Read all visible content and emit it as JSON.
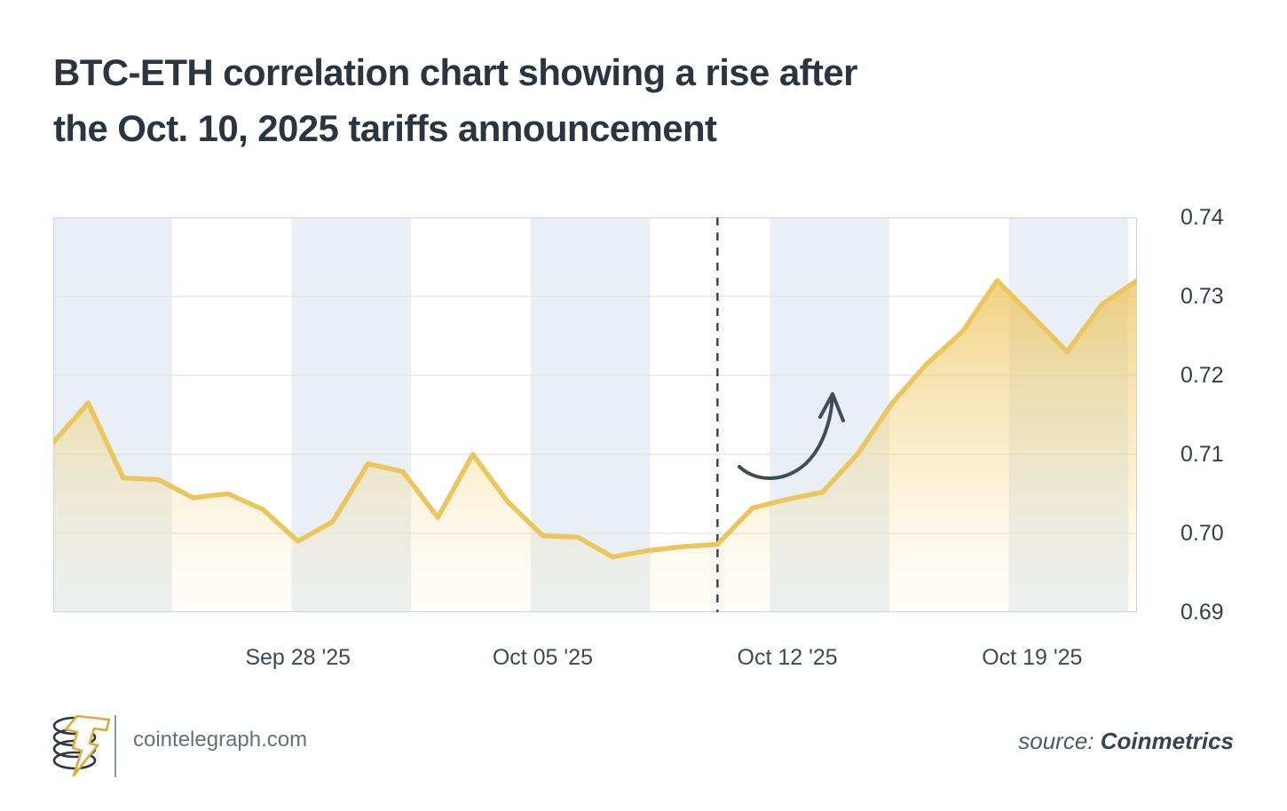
{
  "title": {
    "line1": "BTC-ETH correlation chart showing a rise after",
    "line2": "the Oct. 10, 2025 tariffs announcement"
  },
  "footer": {
    "logo": "cointelegraph-coins-and-lightning-bolt",
    "site": "cointelegraph.com",
    "source_label": "source: ",
    "source_name": "Coinmetrics"
  },
  "chart_data": {
    "type": "area",
    "title": "BTC-ETH correlation",
    "x": [
      "Sep 21 '25",
      "Sep 22 '25",
      "Sep 23 '25",
      "Sep 24 '25",
      "Sep 25 '25",
      "Sep 26 '25",
      "Sep 27 '25",
      "Sep 28 '25",
      "Sep 29 '25",
      "Sep 30 '25",
      "Oct 01 '25",
      "Oct 02 '25",
      "Oct 03 '25",
      "Oct 04 '25",
      "Oct 05 '25",
      "Oct 06 '25",
      "Oct 07 '25",
      "Oct 08 '25",
      "Oct 09 '25",
      "Oct 10 '25",
      "Oct 11 '25",
      "Oct 12 '25",
      "Oct 13 '25",
      "Oct 14 '25",
      "Oct 15 '25",
      "Oct 16 '25",
      "Oct 17 '25",
      "Oct 18 '25",
      "Oct 19 '25",
      "Oct 20 '25",
      "Oct 21 '25",
      "Oct 22 '25"
    ],
    "series": [
      {
        "name": "BTC-ETH correlation",
        "values": [
          0.7115,
          0.7165,
          0.707,
          0.7068,
          0.7045,
          0.705,
          0.703,
          0.699,
          0.7015,
          0.7088,
          0.7078,
          0.702,
          0.71,
          0.704,
          0.6997,
          0.6995,
          0.697,
          0.6978,
          0.6983,
          0.6986,
          0.7032,
          0.7043,
          0.7052,
          0.71,
          0.7165,
          0.7215,
          0.7255,
          0.732,
          0.7275,
          0.723,
          0.729,
          0.732
        ]
      }
    ],
    "xlabel": "",
    "ylabel": "",
    "ylim": [
      0.69,
      0.74
    ],
    "yticks": [
      "0.74",
      "0.73",
      "0.72",
      "0.71",
      "0.70",
      "0.69"
    ],
    "xticks": [
      {
        "label": "Sep 28 '25",
        "index": 7
      },
      {
        "label": "Oct 05 '25",
        "index": 14
      },
      {
        "label": "Oct 12 '25",
        "index": 21
      },
      {
        "label": "Oct 19 '25",
        "index": 28
      }
    ],
    "grid": "horizontal",
    "legend": "none",
    "background_bands": "alternating half-week shading, first band shaded",
    "annotations": {
      "event_line": {
        "label": "Oct. 10, 2025 tariffs announcement",
        "index": 19,
        "style": "dashed-vertical"
      },
      "arrow": {
        "type": "curved-arrow-up",
        "meaning": "rise after announcement"
      }
    },
    "style": {
      "band_color": "#E9EFF4",
      "grid_color": "#E2E7EA",
      "border_color": "#C5D3DC",
      "line_color": "#EBC65E",
      "fill_top": "rgba(236,192,80,0.72)",
      "fill_mid": "rgba(243,214,134,0.42)",
      "fill_bottom": "rgba(250,242,214,0.15)",
      "dashed_line_color": "#3E464D",
      "arrow_color": "#3D4E5A",
      "ytick_color": "#333E49",
      "xtick_color": "#3E4954",
      "title_color": "#2A3540"
    }
  }
}
